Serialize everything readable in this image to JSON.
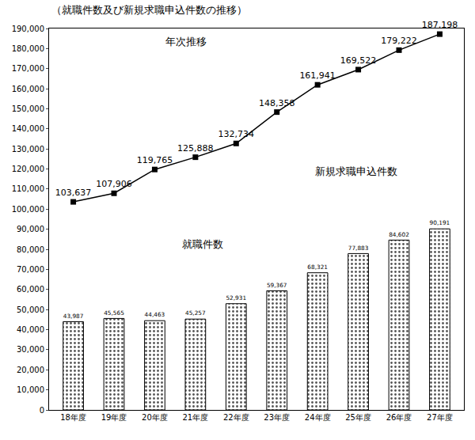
{
  "chart_data": {
    "type": "bar",
    "title": "（就職件数及び新規求職申込件数の推移）",
    "annotations": [
      "年次推移",
      "新規求職申込件数",
      "就職件数"
    ],
    "categories": [
      "18年度",
      "19年度",
      "20年度",
      "21年度",
      "22年度",
      "23年度",
      "24年度",
      "25年度",
      "26年度",
      "27年度"
    ],
    "series": [
      {
        "name": "就職件数",
        "type": "bar",
        "color": "#ffffff",
        "values": [
          43987,
          45565,
          44463,
          45257,
          52931,
          59367,
          68321,
          77883,
          84602,
          90191
        ],
        "value_labels": [
          "43,987",
          "45,565",
          "44,463",
          "45,257",
          "52,931",
          "59,367",
          "68,321",
          "77,883",
          "84,602",
          "90,191"
        ]
      },
      {
        "name": "新規求職申込件数",
        "type": "line",
        "color": "#000000",
        "marker": "square",
        "values": [
          103637,
          107906,
          119765,
          125888,
          132734,
          148358,
          161941,
          169522,
          179222,
          187198
        ],
        "value_labels": [
          "103,637",
          "107,906",
          "119,765",
          "125,888",
          "132,734",
          "148,358",
          "161,941",
          "169,522",
          "179,222",
          "187,198"
        ]
      }
    ],
    "ylim": [
      0,
      190000
    ],
    "yticks": [
      0,
      {
        "value": 10000,
        "label": "10,000"
      },
      {
        "value": 20000,
        "label": "20,000"
      },
      {
        "value": 30000,
        "label": "30,000"
      },
      {
        "value": 40000,
        "label": "40,000"
      },
      {
        "value": 50000,
        "label": "50,000"
      },
      {
        "value": 60000,
        "label": "60,000"
      },
      {
        "value": 70000,
        "label": "70,000"
      },
      {
        "value": 80000,
        "label": "80,000"
      },
      {
        "value": 90000,
        "label": "90,000"
      },
      {
        "value": 100000,
        "label": "100,000"
      },
      {
        "value": 110000,
        "label": "110,000"
      },
      {
        "value": 120000,
        "label": "120,000"
      },
      {
        "value": 130000,
        "label": "130,000"
      },
      {
        "value": 140000,
        "label": "140,000"
      },
      {
        "value": 150000,
        "label": "150,000"
      },
      {
        "value": 160000,
        "label": "160,000"
      },
      {
        "value": 170000,
        "label": "170,000"
      },
      {
        "value": 180000,
        "label": "180,000"
      },
      {
        "value": 190000,
        "label": "190,000"
      }
    ],
    "grid": false,
    "data_labels": true
  }
}
